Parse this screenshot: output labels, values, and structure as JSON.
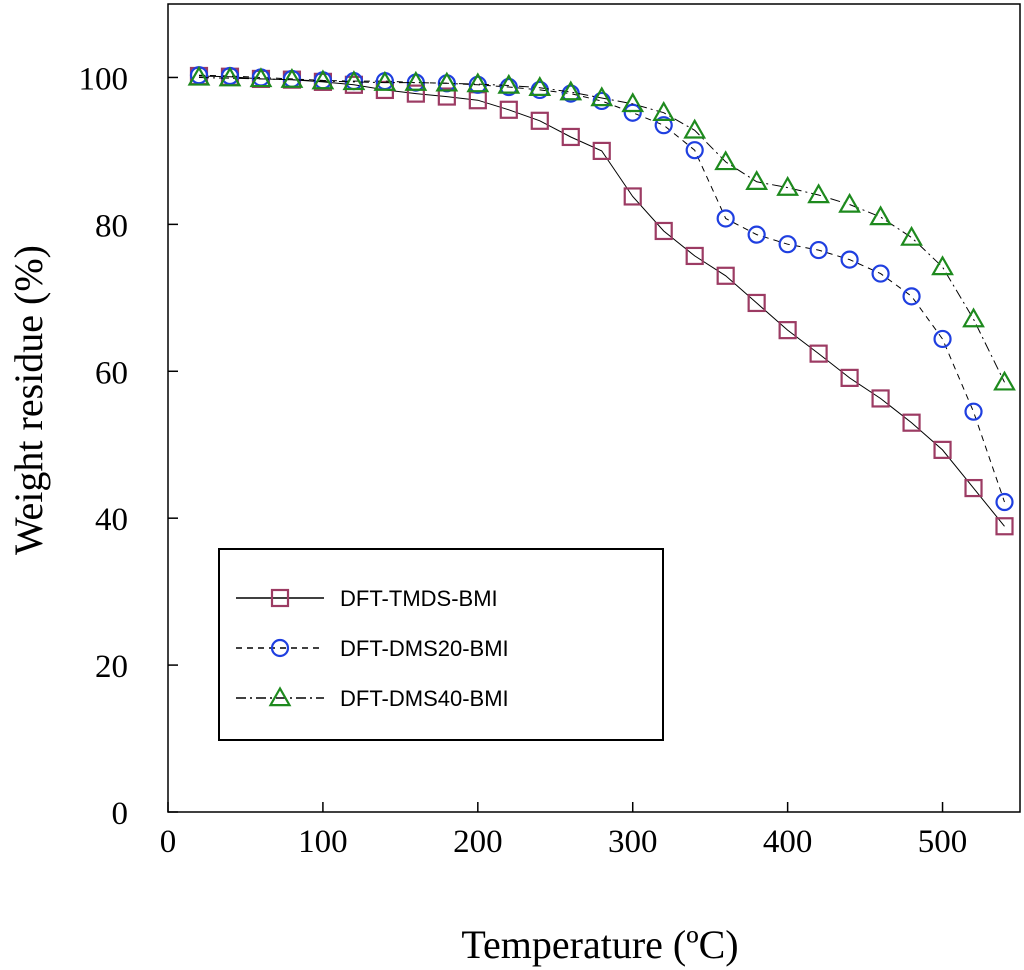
{
  "chart_data": {
    "type": "line",
    "xlabel": "Temperature (ºC)",
    "ylabel": "Weight residue (%)",
    "xlim": [
      0,
      550
    ],
    "ylim": [
      0,
      110
    ],
    "x_ticks": [
      0,
      100,
      200,
      300,
      400,
      500
    ],
    "y_ticks": [
      0,
      20,
      40,
      60,
      80,
      100
    ],
    "x_tick_labels": [
      "0",
      "100",
      "200",
      "300",
      "400",
      "500"
    ],
    "y_tick_labels": [
      "0",
      "20",
      "40",
      "60",
      "80",
      "100"
    ],
    "grid": false,
    "legend_position": "lower-left",
    "x": [
      20,
      40,
      60,
      80,
      100,
      120,
      140,
      160,
      180,
      200,
      220,
      240,
      260,
      280,
      300,
      320,
      340,
      360,
      380,
      400,
      420,
      440,
      460,
      480,
      500,
      520,
      540
    ],
    "series": [
      {
        "name": "DFT-TMDS-BMI",
        "marker": "square",
        "line_style": "solid",
        "color": "#9c3b63",
        "values": [
          100.2,
          100.1,
          99.8,
          99.7,
          99.4,
          99.0,
          98.3,
          97.8,
          97.4,
          96.9,
          95.6,
          94.1,
          91.9,
          90.0,
          83.8,
          79.1,
          75.7,
          73.0,
          69.3,
          65.6,
          62.4,
          59.1,
          56.3,
          53.0,
          49.3,
          44.1,
          38.9
        ]
      },
      {
        "name": "DFT-DMS20-BMI",
        "marker": "circle",
        "line_style": "dashed",
        "color": "#1f3fe0",
        "values": [
          100.3,
          100.2,
          100.0,
          99.8,
          99.6,
          99.5,
          99.5,
          99.3,
          99.2,
          99.0,
          98.7,
          98.3,
          97.8,
          96.8,
          95.2,
          93.5,
          90.1,
          80.8,
          78.6,
          77.3,
          76.5,
          75.2,
          73.3,
          70.2,
          64.4,
          54.5,
          42.2
        ]
      },
      {
        "name": "DFT-DMS40-BMI",
        "marker": "triangle",
        "line_style": "dash-dot",
        "color": "#1e8a1e",
        "values": [
          100.0,
          99.9,
          99.8,
          99.7,
          99.5,
          99.4,
          99.3,
          99.3,
          99.2,
          99.1,
          98.9,
          98.6,
          98.0,
          97.2,
          96.4,
          95.2,
          92.8,
          88.5,
          85.8,
          85.0,
          84.0,
          82.7,
          81.0,
          78.2,
          74.2,
          67.1,
          58.5
        ]
      }
    ]
  }
}
